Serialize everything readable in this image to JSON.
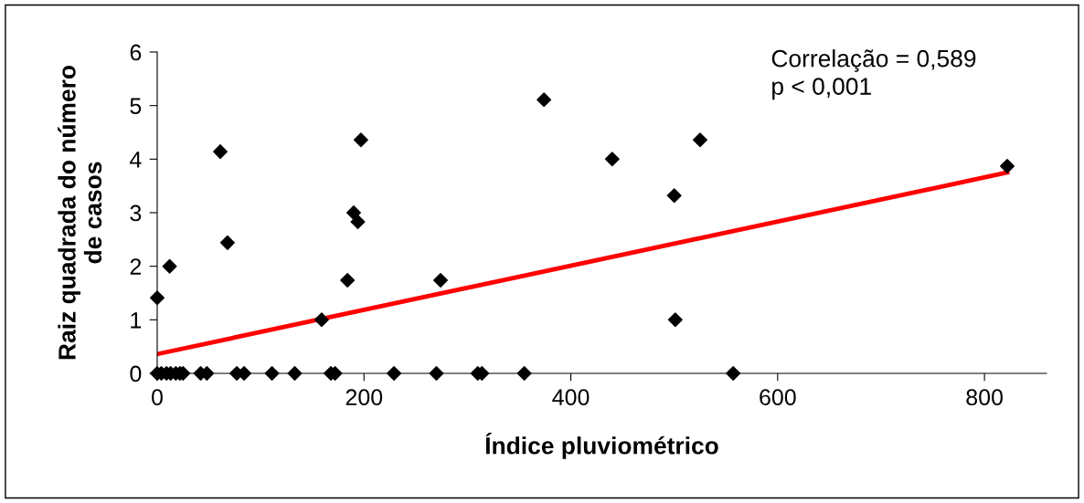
{
  "chart_data": {
    "type": "scatter",
    "xlabel": "Índice pluviométrico",
    "ylabel": "Raiz quadrada do número de casos",
    "xlim": [
      0,
      860
    ],
    "ylim": [
      0,
      6
    ],
    "xticks": [
      0,
      200,
      400,
      600,
      800
    ],
    "yticks": [
      0,
      1,
      2,
      3,
      4,
      5,
      6
    ],
    "grid": false,
    "legend": false,
    "marker": "diamond",
    "annotations": [
      "Correlação = 0,589",
      "p < 0,001"
    ],
    "series": [
      {
        "color": "#000000",
        "x": [
          0,
          12,
          61,
          68,
          197,
          190,
          194,
          184,
          159,
          374,
          440,
          500,
          501,
          525,
          822,
          274,
          0,
          4,
          9,
          13,
          18,
          22,
          25,
          42,
          48,
          77,
          84,
          111,
          133,
          168,
          172,
          229,
          270,
          310,
          314,
          355,
          557
        ],
        "values": [
          1.41,
          2.0,
          4.14,
          2.44,
          4.36,
          3.0,
          2.83,
          1.74,
          1.0,
          5.11,
          4.0,
          3.32,
          1.0,
          4.36,
          3.87,
          1.74,
          0,
          0,
          0,
          0,
          0,
          0,
          0,
          0,
          0,
          0,
          0,
          0,
          0,
          0,
          0,
          0,
          0,
          0,
          0,
          0,
          0
        ]
      },
      {
        "type": "line",
        "color": "#ff0000",
        "x": [
          0,
          822
        ],
        "values": [
          0.36,
          3.75
        ],
        "marker": "none",
        "line_style": "solid"
      }
    ]
  }
}
